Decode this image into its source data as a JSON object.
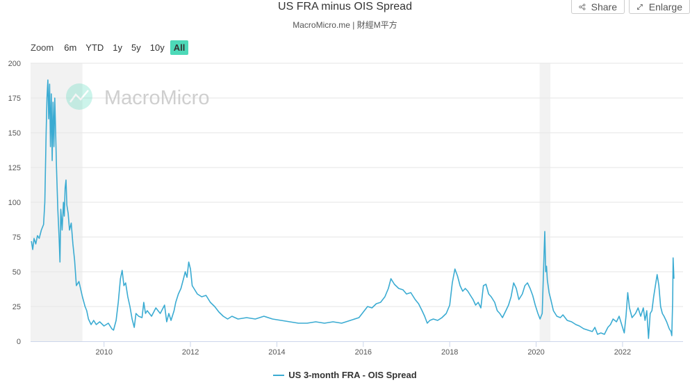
{
  "header": {
    "title": "US FRA minus OIS Spread",
    "subtitle": "MacroMicro.me | 財經M平方",
    "share_label": "Share",
    "enlarge_label": "Enlarge"
  },
  "range_selector": {
    "label": "Zoom",
    "buttons": [
      "6m",
      "YTD",
      "1y",
      "5y",
      "10y",
      "All"
    ],
    "active": "All"
  },
  "watermark": {
    "text": "MacroMicro"
  },
  "colors": {
    "series": "#3aabd2",
    "active_range": "#4dd9b8",
    "recession_band": "#f2f2f2",
    "watermark": "#4dd9b8"
  },
  "chart_data": {
    "type": "line",
    "title": "US FRA minus OIS Spread",
    "ylim": [
      0,
      200
    ],
    "xlim": [
      2008.3,
      2023.4
    ],
    "yticks": [
      0,
      25,
      50,
      75,
      100,
      125,
      150,
      175,
      200
    ],
    "xticks": [
      2010,
      2012,
      2014,
      2016,
      2018,
      2020,
      2022
    ],
    "grid": true,
    "legend_position": "bottom-center",
    "recession_bands": [
      [
        2008.3,
        2009.5
      ],
      [
        2020.08,
        2020.33
      ]
    ],
    "series": [
      {
        "name": "US 3-month FRA - OIS Spread",
        "points": [
          [
            2008.32,
            72
          ],
          [
            2008.35,
            66
          ],
          [
            2008.38,
            74
          ],
          [
            2008.42,
            70
          ],
          [
            2008.46,
            76
          ],
          [
            2008.5,
            74
          ],
          [
            2008.55,
            80
          ],
          [
            2008.6,
            84
          ],
          [
            2008.63,
            100
          ],
          [
            2008.66,
            150
          ],
          [
            2008.68,
            175
          ],
          [
            2008.7,
            188
          ],
          [
            2008.72,
            160
          ],
          [
            2008.74,
            185
          ],
          [
            2008.76,
            140
          ],
          [
            2008.78,
            178
          ],
          [
            2008.8,
            130
          ],
          [
            2008.82,
            172
          ],
          [
            2008.84,
            140
          ],
          [
            2008.86,
            175
          ],
          [
            2008.88,
            150
          ],
          [
            2008.9,
            125
          ],
          [
            2008.93,
            95
          ],
          [
            2008.96,
            75
          ],
          [
            2008.98,
            57
          ],
          [
            2009.0,
            95
          ],
          [
            2009.03,
            80
          ],
          [
            2009.06,
            100
          ],
          [
            2009.08,
            90
          ],
          [
            2009.1,
            110
          ],
          [
            2009.12,
            116
          ],
          [
            2009.14,
            98
          ],
          [
            2009.17,
            92
          ],
          [
            2009.2,
            80
          ],
          [
            2009.24,
            85
          ],
          [
            2009.28,
            70
          ],
          [
            2009.32,
            58
          ],
          [
            2009.36,
            40
          ],
          [
            2009.42,
            43
          ],
          [
            2009.5,
            32
          ],
          [
            2009.56,
            25
          ],
          [
            2009.6,
            22
          ],
          [
            2009.64,
            16
          ],
          [
            2009.7,
            12
          ],
          [
            2009.76,
            15
          ],
          [
            2009.82,
            12
          ],
          [
            2009.9,
            14
          ],
          [
            2010.0,
            11
          ],
          [
            2010.1,
            13
          ],
          [
            2010.18,
            9
          ],
          [
            2010.22,
            8
          ],
          [
            2010.28,
            15
          ],
          [
            2010.33,
            28
          ],
          [
            2010.38,
            45
          ],
          [
            2010.42,
            51
          ],
          [
            2010.46,
            40
          ],
          [
            2010.5,
            42
          ],
          [
            2010.55,
            32
          ],
          [
            2010.6,
            25
          ],
          [
            2010.65,
            16
          ],
          [
            2010.7,
            10
          ],
          [
            2010.74,
            20
          ],
          [
            2010.8,
            18
          ],
          [
            2010.88,
            17
          ],
          [
            2010.92,
            28
          ],
          [
            2010.96,
            20
          ],
          [
            2011.0,
            22
          ],
          [
            2011.1,
            18
          ],
          [
            2011.2,
            24
          ],
          [
            2011.3,
            20
          ],
          [
            2011.4,
            26
          ],
          [
            2011.45,
            14
          ],
          [
            2011.5,
            20
          ],
          [
            2011.55,
            15
          ],
          [
            2011.62,
            22
          ],
          [
            2011.66,
            28
          ],
          [
            2011.72,
            34
          ],
          [
            2011.78,
            38
          ],
          [
            2011.84,
            45
          ],
          [
            2011.88,
            50
          ],
          [
            2011.92,
            46
          ],
          [
            2011.96,
            57
          ],
          [
            2012.0,
            52
          ],
          [
            2012.04,
            40
          ],
          [
            2012.08,
            38
          ],
          [
            2012.16,
            34
          ],
          [
            2012.26,
            32
          ],
          [
            2012.36,
            33
          ],
          [
            2012.46,
            28
          ],
          [
            2012.56,
            25
          ],
          [
            2012.66,
            21
          ],
          [
            2012.76,
            18
          ],
          [
            2012.86,
            16
          ],
          [
            2012.96,
            18
          ],
          [
            2013.1,
            16
          ],
          [
            2013.3,
            17
          ],
          [
            2013.5,
            16
          ],
          [
            2013.7,
            18
          ],
          [
            2013.9,
            16
          ],
          [
            2014.1,
            15
          ],
          [
            2014.3,
            14
          ],
          [
            2014.5,
            13
          ],
          [
            2014.7,
            13
          ],
          [
            2014.9,
            14
          ],
          [
            2015.1,
            13
          ],
          [
            2015.3,
            14
          ],
          [
            2015.5,
            13
          ],
          [
            2015.7,
            15
          ],
          [
            2015.9,
            17
          ],
          [
            2016.1,
            25
          ],
          [
            2016.2,
            24
          ],
          [
            2016.3,
            27
          ],
          [
            2016.4,
            28
          ],
          [
            2016.5,
            32
          ],
          [
            2016.58,
            38
          ],
          [
            2016.64,
            45
          ],
          [
            2016.72,
            41
          ],
          [
            2016.82,
            38
          ],
          [
            2016.92,
            37
          ],
          [
            2017.0,
            34
          ],
          [
            2017.1,
            35
          ],
          [
            2017.2,
            30
          ],
          [
            2017.28,
            27
          ],
          [
            2017.36,
            22
          ],
          [
            2017.42,
            18
          ],
          [
            2017.48,
            13
          ],
          [
            2017.54,
            15
          ],
          [
            2017.62,
            16
          ],
          [
            2017.72,
            15
          ],
          [
            2017.82,
            17
          ],
          [
            2017.92,
            20
          ],
          [
            2018.0,
            26
          ],
          [
            2018.06,
            42
          ],
          [
            2018.12,
            52
          ],
          [
            2018.18,
            47
          ],
          [
            2018.24,
            40
          ],
          [
            2018.3,
            36
          ],
          [
            2018.36,
            38
          ],
          [
            2018.42,
            36
          ],
          [
            2018.48,
            33
          ],
          [
            2018.54,
            30
          ],
          [
            2018.6,
            26
          ],
          [
            2018.66,
            28
          ],
          [
            2018.72,
            24
          ],
          [
            2018.78,
            40
          ],
          [
            2018.84,
            41
          ],
          [
            2018.9,
            34
          ],
          [
            2018.96,
            32
          ],
          [
            2019.0,
            30
          ],
          [
            2019.04,
            28
          ],
          [
            2019.1,
            22
          ],
          [
            2019.16,
            20
          ],
          [
            2019.22,
            17
          ],
          [
            2019.3,
            22
          ],
          [
            2019.36,
            26
          ],
          [
            2019.42,
            32
          ],
          [
            2019.48,
            42
          ],
          [
            2019.54,
            38
          ],
          [
            2019.6,
            30
          ],
          [
            2019.68,
            34
          ],
          [
            2019.74,
            40
          ],
          [
            2019.8,
            42
          ],
          [
            2019.86,
            38
          ],
          [
            2019.92,
            33
          ],
          [
            2019.98,
            26
          ],
          [
            2020.04,
            20
          ],
          [
            2020.09,
            16
          ],
          [
            2020.14,
            20
          ],
          [
            2020.18,
            60
          ],
          [
            2020.2,
            79
          ],
          [
            2020.22,
            50
          ],
          [
            2020.24,
            54
          ],
          [
            2020.26,
            44
          ],
          [
            2020.3,
            35
          ],
          [
            2020.34,
            30
          ],
          [
            2020.4,
            22
          ],
          [
            2020.48,
            18
          ],
          [
            2020.56,
            17
          ],
          [
            2020.62,
            19
          ],
          [
            2020.72,
            15
          ],
          [
            2020.82,
            14
          ],
          [
            2020.92,
            12
          ],
          [
            2021.0,
            11
          ],
          [
            2021.1,
            9
          ],
          [
            2021.2,
            8
          ],
          [
            2021.3,
            7
          ],
          [
            2021.36,
            10
          ],
          [
            2021.42,
            5
          ],
          [
            2021.5,
            6
          ],
          [
            2021.58,
            5
          ],
          [
            2021.66,
            10
          ],
          [
            2021.72,
            12
          ],
          [
            2021.78,
            16
          ],
          [
            2021.86,
            14
          ],
          [
            2021.92,
            18
          ],
          [
            2022.0,
            10
          ],
          [
            2022.04,
            6
          ],
          [
            2022.08,
            18
          ],
          [
            2022.12,
            35
          ],
          [
            2022.16,
            24
          ],
          [
            2022.22,
            17
          ],
          [
            2022.3,
            20
          ],
          [
            2022.36,
            24
          ],
          [
            2022.42,
            18
          ],
          [
            2022.48,
            24
          ],
          [
            2022.52,
            15
          ],
          [
            2022.56,
            22
          ],
          [
            2022.6,
            2
          ],
          [
            2022.64,
            20
          ],
          [
            2022.68,
            22
          ],
          [
            2022.72,
            32
          ],
          [
            2022.76,
            40
          ],
          [
            2022.8,
            48
          ],
          [
            2022.84,
            40
          ],
          [
            2022.88,
            25
          ],
          [
            2022.92,
            20
          ],
          [
            2022.96,
            18
          ],
          [
            2023.02,
            14
          ],
          [
            2023.08,
            9
          ],
          [
            2023.12,
            7
          ],
          [
            2023.14,
            4
          ],
          [
            2023.16,
            30
          ],
          [
            2023.17,
            60
          ],
          [
            2023.19,
            45
          ]
        ]
      }
    ]
  }
}
